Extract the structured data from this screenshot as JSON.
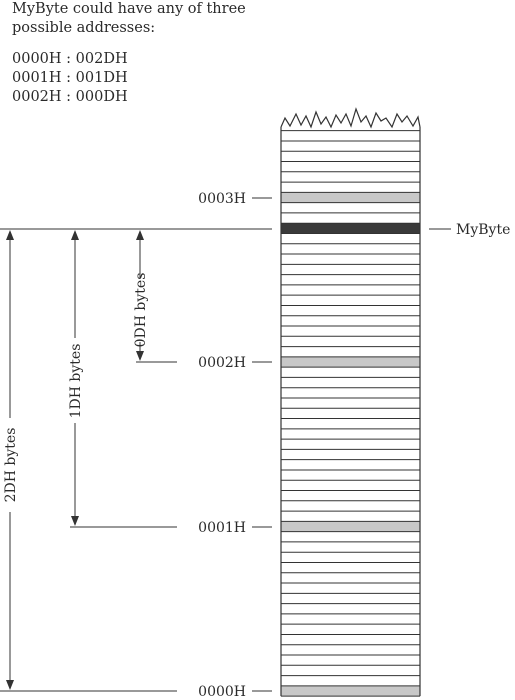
{
  "header": {
    "line1": "MyByte could have any of three",
    "line2": "possible addresses:",
    "addresses": [
      "0000H : 002DH",
      "0001H : 001DH",
      "0002H : 000DH"
    ]
  },
  "labels": {
    "addr_0003": "0003H",
    "addr_0002": "0002H",
    "addr_0001": "0001H",
    "addr_0000": "0000H",
    "mybyte": "MyByte"
  },
  "dimensions": {
    "span_0d": "0DH bytes",
    "span_1d": "1DH bytes",
    "span_2d": "2DH bytes"
  },
  "colors": {
    "paragraph_boundary_fill": "#c8c8c8",
    "mybyte_fill": "#3a3a3a",
    "line": "#333333"
  }
}
